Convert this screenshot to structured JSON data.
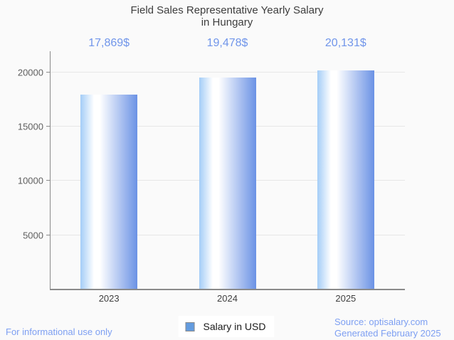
{
  "title": {
    "line1": "Field Sales Representative Yearly Salary",
    "line2": "in Hungary"
  },
  "chart_data": {
    "type": "bar",
    "title": "Field Sales Representative Yearly Salary in Hungary",
    "categories": [
      "2023",
      "2024",
      "2025"
    ],
    "series": [
      {
        "name": "Salary in USD",
        "values": [
          17869,
          19478,
          20131
        ]
      }
    ],
    "value_labels": [
      "17,869$",
      "19,478$",
      "20,131$"
    ],
    "xlabel": "",
    "ylabel": "",
    "yticks": [
      5000,
      10000,
      15000,
      20000
    ],
    "ytick_labels": [
      "5000",
      "10000",
      "15000",
      "20000"
    ],
    "ylim": [
      0,
      21900
    ],
    "grid": true,
    "legend_position": "bottom",
    "bar_gradient": [
      "#a4cdf7",
      "#ffffff",
      "#6b92e5"
    ],
    "accent_color": "#7095ea"
  },
  "legend": {
    "label": "Salary in USD",
    "marker_color": "#649ce0"
  },
  "footer": {
    "left": "For informational use only",
    "source": "Source: optisalary.com",
    "generated": "Generated February 2025"
  }
}
